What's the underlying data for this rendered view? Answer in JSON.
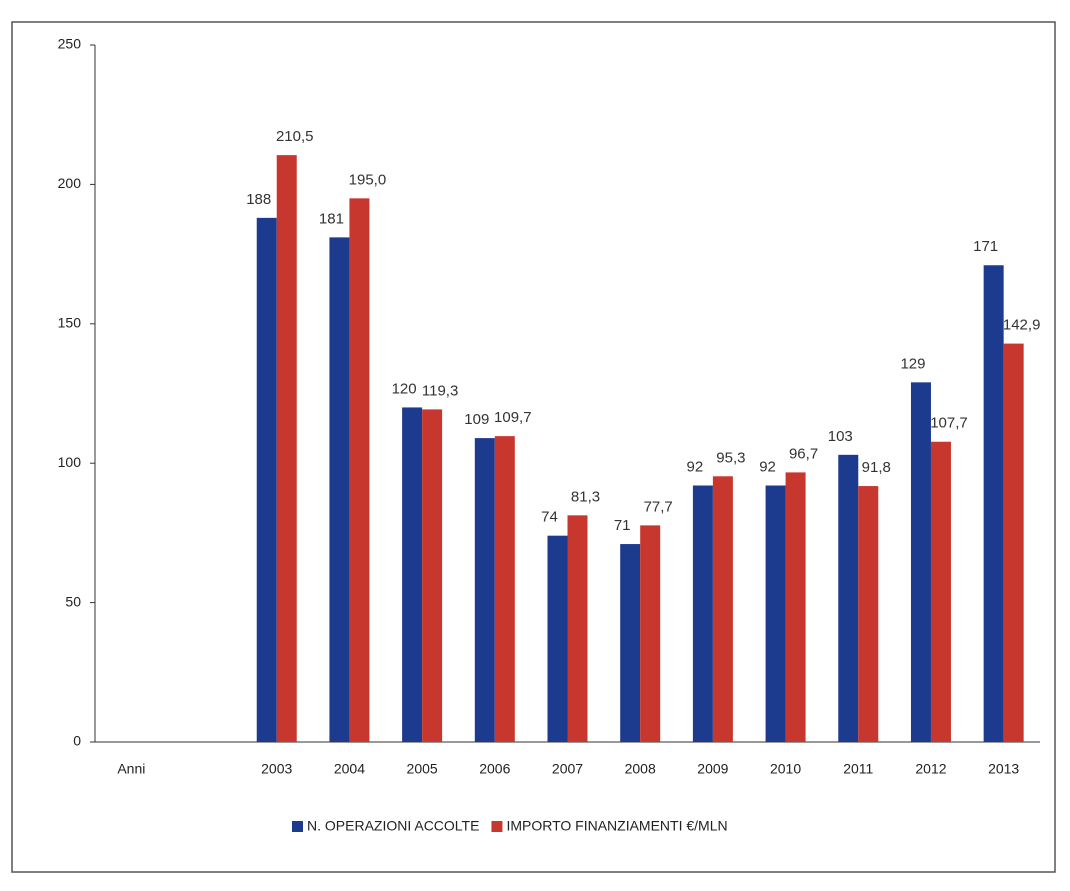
{
  "chart_data": {
    "type": "bar",
    "categories": [
      "Anni",
      null,
      "2003",
      "2004",
      "2005",
      "2006",
      "2007",
      "2008",
      "2009",
      "2010",
      "2011",
      "2012",
      "2013"
    ],
    "series": [
      {
        "name": "N. OPERAZIONI ACCOLTE",
        "color": "#1c3a8e",
        "values": [
          null,
          null,
          188,
          181,
          120,
          109,
          74,
          71,
          92,
          92,
          103,
          129,
          171
        ]
      },
      {
        "name": "IMPORTO FINANZIAMENTI €/MLN",
        "color": "#c8372d",
        "values": [
          null,
          null,
          210.5,
          195.0,
          119.3,
          109.7,
          81.3,
          77.7,
          95.3,
          96.7,
          91.8,
          107.7,
          142.9
        ],
        "value_labels": [
          null,
          null,
          "210,5",
          "195,0",
          "119,3",
          "109,7",
          "81,3",
          "77,7",
          "95,3",
          "96,7",
          "91,8",
          "107,7",
          "142,9"
        ]
      }
    ],
    "ylim": [
      0,
      250
    ],
    "yticks": [
      0,
      50,
      100,
      150,
      200,
      250
    ],
    "grid": false,
    "legend": "bottom"
  }
}
